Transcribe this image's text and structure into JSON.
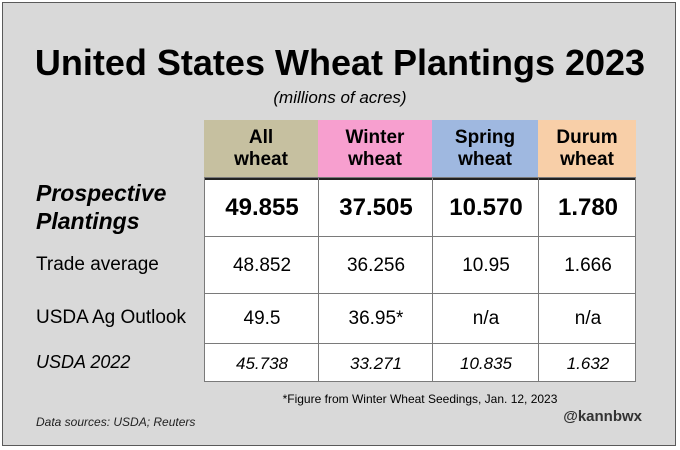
{
  "chart_data": {
    "type": "table",
    "title": "United States Wheat Plantings 2023",
    "subtitle": "(millions of acres)",
    "columns": [
      {
        "label": "All\nwheat",
        "color": "#c6c0a0"
      },
      {
        "label": "Winter\nwheat",
        "color": "#f79fcf"
      },
      {
        "label": "Spring\nwheat",
        "color": "#9fb8e0"
      },
      {
        "label": "Durum\nwheat",
        "color": "#f8cfa8"
      }
    ],
    "rows": [
      {
        "label": "Prospective\nPlantings",
        "values": [
          "49.855",
          "37.505",
          "10.570",
          "1.780"
        ],
        "style": "bold-italic"
      },
      {
        "label": "Trade average",
        "values": [
          "48.852",
          "36.256",
          "10.95",
          "1.666"
        ],
        "style": "normal"
      },
      {
        "label": "USDA Ag Outlook",
        "values": [
          "49.5",
          "36.95*",
          "n/a",
          "n/a"
        ],
        "style": "normal"
      },
      {
        "label": "USDA 2022",
        "values": [
          "45.738",
          "33.271",
          "10.835",
          "1.632"
        ],
        "style": "italic"
      }
    ],
    "footnote": "*Figure from Winter Wheat Seedings, Jan. 12, 2023",
    "source": "Data sources: USDA; Reuters",
    "handle": "@kannbwx"
  }
}
